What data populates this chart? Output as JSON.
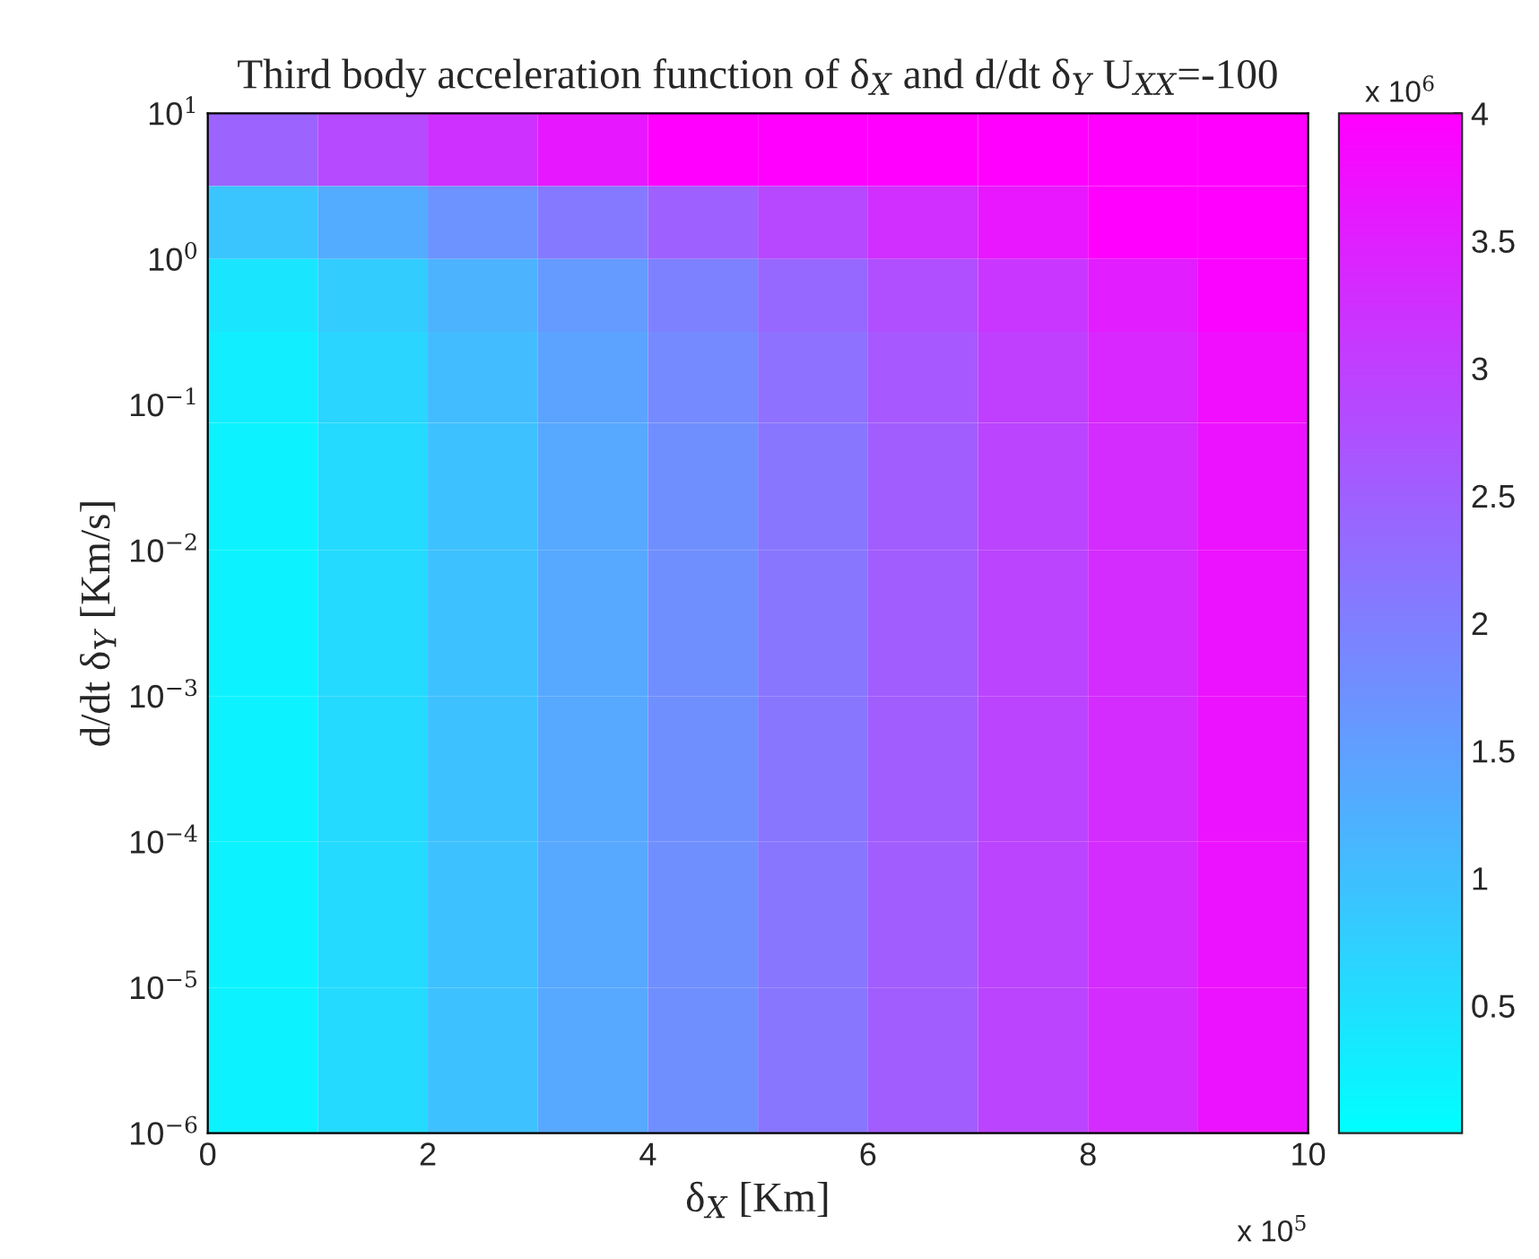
{
  "chart_data": {
    "type": "heatmap",
    "title": "Third body acceleration function of δ$_{X}$ and d/dt δ$_{Y}$ U$_{XX}$=-100",
    "xlabel": "δ$_{X}$ [Km]",
    "ylabel": "d/dt δ$_{Y}$ [Km/s]",
    "clabel": "x 10$^{6}$",
    "annotations": [
      "x 10$^{5}$"
    ],
    "x": [
      0.5,
      1.5,
      2.5,
      3.5,
      4.5,
      5.5,
      6.5,
      7.5,
      8.5,
      9.5
    ],
    "y": [
      5.62,
      1.78,
      0.562,
      0.178,
      0.0316,
      0.00316,
      0.000316,
      3.16e-05,
      3.16e-06
    ],
    "cells": [
      [
        2.45,
        2.84,
        3.23,
        3.62,
        4.0,
        4.0,
        4.0,
        4.0,
        4.0,
        4.0
      ],
      [
        0.91,
        1.3,
        1.69,
        2.08,
        2.47,
        2.86,
        3.25,
        3.64,
        4.0,
        4.0
      ],
      [
        0.42,
        0.81,
        1.2,
        1.59,
        1.98,
        2.37,
        2.76,
        3.15,
        3.54,
        3.93
      ],
      [
        0.27,
        0.66,
        1.05,
        1.44,
        1.83,
        2.22,
        2.61,
        3.0,
        3.39,
        3.78
      ],
      [
        0.2,
        0.59,
        0.98,
        1.37,
        1.76,
        2.15,
        2.54,
        2.93,
        3.32,
        3.71
      ],
      [
        0.2,
        0.59,
        0.98,
        1.37,
        1.76,
        2.15,
        2.54,
        2.93,
        3.32,
        3.71
      ],
      [
        0.2,
        0.59,
        0.98,
        1.37,
        1.76,
        2.15,
        2.54,
        2.93,
        3.32,
        3.71
      ],
      [
        0.2,
        0.59,
        0.98,
        1.37,
        1.76,
        2.15,
        2.54,
        2.93,
        3.32,
        3.71
      ],
      [
        0.2,
        0.59,
        0.98,
        1.37,
        1.76,
        2.15,
        2.54,
        2.93,
        3.32,
        3.71
      ]
    ],
    "xlim": [
      0,
      10
    ],
    "xticks": [
      0,
      2,
      4,
      6,
      8,
      10
    ],
    "ylim": [
      1e-06,
      10
    ],
    "log": "y",
    "yticks": [
      {
        "value": 1e-06,
        "label": "10$^{−6}$"
      },
      {
        "value": 1e-05,
        "label": "10$^{−5}$"
      },
      {
        "value": 0.0001,
        "label": "10$^{−4}$"
      },
      {
        "value": 0.001,
        "label": "10$^{−3}$"
      },
      {
        "value": 0.01,
        "label": "10$^{−2}$"
      },
      {
        "value": 0.1,
        "label": "10$^{−1}$"
      },
      {
        "value": 1,
        "label": "10$^{0}$"
      },
      {
        "value": 10,
        "label": "10$^{1}$"
      }
    ],
    "clim": [
      0,
      4
    ],
    "cticks": [
      0.5,
      1,
      1.5,
      2,
      2.5,
      3,
      3.5,
      4
    ],
    "grid": false
  }
}
